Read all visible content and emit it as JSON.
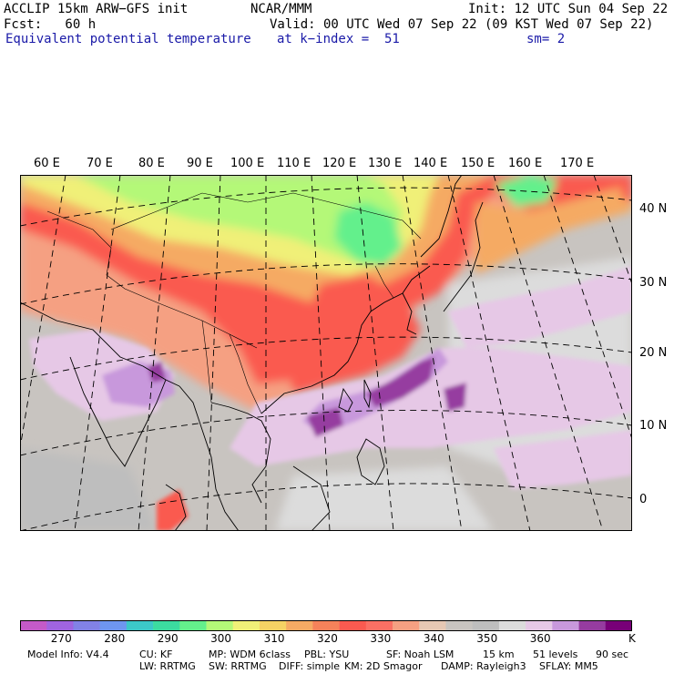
{
  "header": {
    "model": "ACCLIP 15km ARW−GFS init",
    "org": "NCAR/MMM",
    "init": "Init: 12 UTC Sun 04 Sep 22",
    "fcst": "Fcst:   60 h",
    "valid": "Valid: 00 UTC Wed 07 Sep 22 (09 KST Wed 07 Sep 22)",
    "field": "Equivalent potential temperature",
    "level": "at k−index =  51",
    "smooth": "sm= 2"
  },
  "map": {
    "lon_labels": [
      "60 E",
      "70 E",
      "80 E",
      "90 E",
      "100 E",
      "110 E",
      "120 E",
      "130 E",
      "140 E",
      "150 E",
      "160 E",
      "170 E"
    ],
    "lat_labels": [
      "40 N",
      "30 N",
      "20 N",
      "10 N",
      "0"
    ]
  },
  "colorbar": {
    "colors": [
      "#c45ac8",
      "#a064e0",
      "#8282e6",
      "#6e96f0",
      "#3cc8c8",
      "#3cdca0",
      "#64f08c",
      "#b4f878",
      "#f0f078",
      "#f5d264",
      "#f5aa64",
      "#f5825a",
      "#fa5a50",
      "#fa7064",
      "#f5a082",
      "#e6c8b4",
      "#c8c4c0",
      "#bebebe",
      "#dcdcdc",
      "#e6c8e6",
      "#c898dc",
      "#963ca0",
      "#780078"
    ],
    "labels": [
      "270",
      "280",
      "290",
      "300",
      "310",
      "320",
      "330",
      "340",
      "350",
      "360"
    ],
    "unit": "K"
  },
  "footer": {
    "line1": [
      "Model Info: V4.4",
      "CU: KF",
      "MP: WDM 6class",
      "PBL: YSU",
      "SF: Noah LSM",
      "15 km",
      "51 levels",
      "90 sec"
    ],
    "line2": [
      "LW: RRTMG",
      "SW: RRTMG",
      "DIFF: simple",
      "KM: 2D Smagor",
      "DAMP: Rayleigh3",
      "SFLAY: MM5"
    ]
  }
}
